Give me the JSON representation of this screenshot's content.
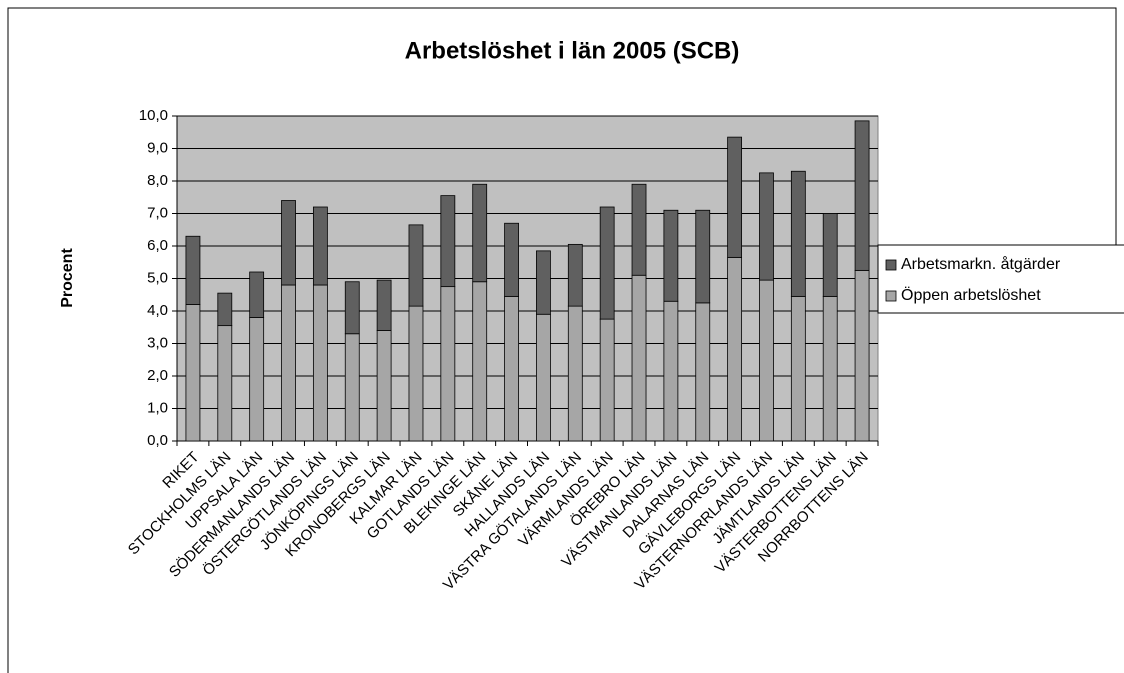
{
  "chart_data": {
    "type": "stacked_bar",
    "title": "Arbetslöshet i län 2005 (SCB)",
    "y_label": "Procent",
    "categories": [
      "RIKET",
      "STOCKHOLMS LÄN",
      "UPPSALA LÄN",
      "SÖDERMANLANDS LÄN",
      "ÖSTERGÖTLANDS LÄN",
      "JÖNKÖPINGS LÄN",
      "KRONOBERGS LÄN",
      "KALMAR LÄN",
      "GOTLANDS LÄN",
      "BLEKINGE LÄN",
      "SKÅNE LÄN",
      "HALLANDS LÄN",
      "VÄSTRA GÖTALANDS LÄN",
      "VÄRMLANDS LÄN",
      "ÖREBRO LÄN",
      "VÄSTMANLANDS LÄN",
      "DALARNAS LÄN",
      "GÄVLEBORGS LÄN",
      "VÄSTERNORRLANDS LÄN",
      "JÄMTLANDS LÄN",
      "VÄSTERBOTTENS LÄN",
      "NORRBOTTENS LÄN"
    ],
    "series": [
      {
        "name": "Öppen arbetslöshet",
        "color": "#a6a6a6",
        "values": [
          4.2,
          3.55,
          3.8,
          4.8,
          4.8,
          3.3,
          3.4,
          4.15,
          4.75,
          4.9,
          4.45,
          3.9,
          4.15,
          3.75,
          5.1,
          4.3,
          4.25,
          5.65,
          4.95,
          4.45,
          4.45,
          5.25
        ]
      },
      {
        "name": "Arbetsmarkn. åtgärder",
        "color": "#606060",
        "values": [
          2.1,
          1.0,
          1.4,
          2.6,
          2.4,
          1.6,
          1.55,
          2.5,
          2.8,
          3.0,
          2.25,
          1.95,
          1.9,
          3.45,
          2.8,
          2.8,
          2.85,
          3.7,
          3.3,
          3.85,
          2.55,
          4.6
        ]
      }
    ],
    "ylim": [
      0,
      10
    ],
    "yticks": [
      {
        "value": 0,
        "label": "0,0"
      },
      {
        "value": 1,
        "label": "1,0"
      },
      {
        "value": 2,
        "label": "2,0"
      },
      {
        "value": 3,
        "label": "3,0"
      },
      {
        "value": 4,
        "label": "4,0"
      },
      {
        "value": 5,
        "label": "5,0"
      },
      {
        "value": 6,
        "label": "6,0"
      },
      {
        "value": 7,
        "label": "7,0"
      },
      {
        "value": 8,
        "label": "8,0"
      },
      {
        "value": 9,
        "label": "9,0"
      },
      {
        "value": 10,
        "label": "10,0"
      }
    ],
    "grid": true,
    "legend": "right",
    "plot_background": "#c0c0c0"
  }
}
